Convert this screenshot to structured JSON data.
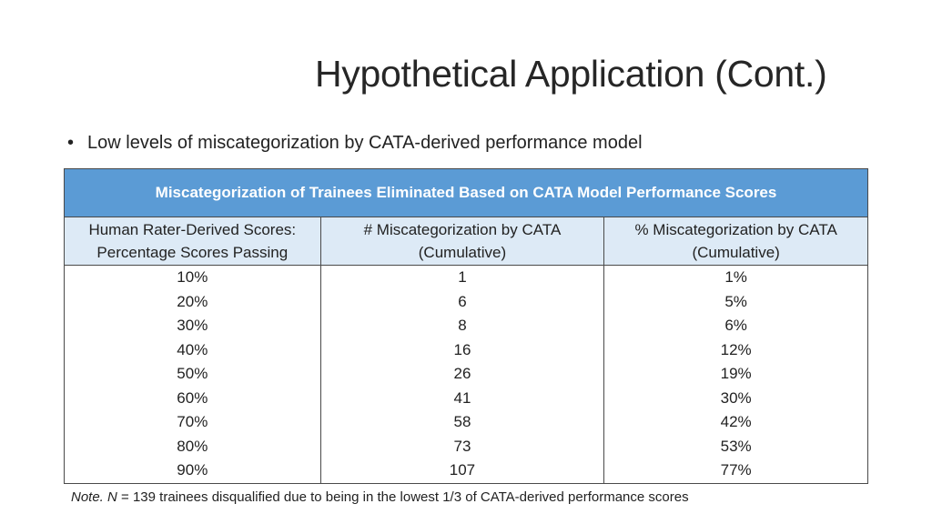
{
  "slide": {
    "title": "Hypothetical Application (Cont.)",
    "bullet": "Low levels of miscategorization by CATA-derived performance model"
  },
  "table": {
    "caption": "Miscategorization of Trainees Eliminated Based on CATA Model Performance Scores",
    "headers": [
      {
        "line1": "Human Rater-Derived Scores:",
        "line2": "Percentage Scores Passing"
      },
      {
        "line1": "# Miscategorization by CATA",
        "line2": "(Cumulative)"
      },
      {
        "line1": "% Miscategorization by CATA",
        "line2": "(Cumulative)"
      }
    ],
    "rows": [
      [
        "10%",
        "1",
        "1%"
      ],
      [
        "20%",
        "6",
        "5%"
      ],
      [
        "30%",
        "8",
        "6%"
      ],
      [
        "40%",
        "16",
        "12%"
      ],
      [
        "50%",
        "26",
        "19%"
      ],
      [
        "60%",
        "41",
        "30%"
      ],
      [
        "70%",
        "58",
        "42%"
      ],
      [
        "80%",
        "73",
        "53%"
      ],
      [
        "90%",
        "107",
        "77%"
      ]
    ]
  },
  "note": {
    "label": "Note.",
    "n_symbol": "N",
    "text": " = 139 trainees disqualified due to being in the lowest 1/3 of CATA-derived performance scores"
  },
  "colors": {
    "caption_bg": "#5b9bd5",
    "header_bg": "#ddeaf6",
    "border": "#4a4a4a"
  }
}
